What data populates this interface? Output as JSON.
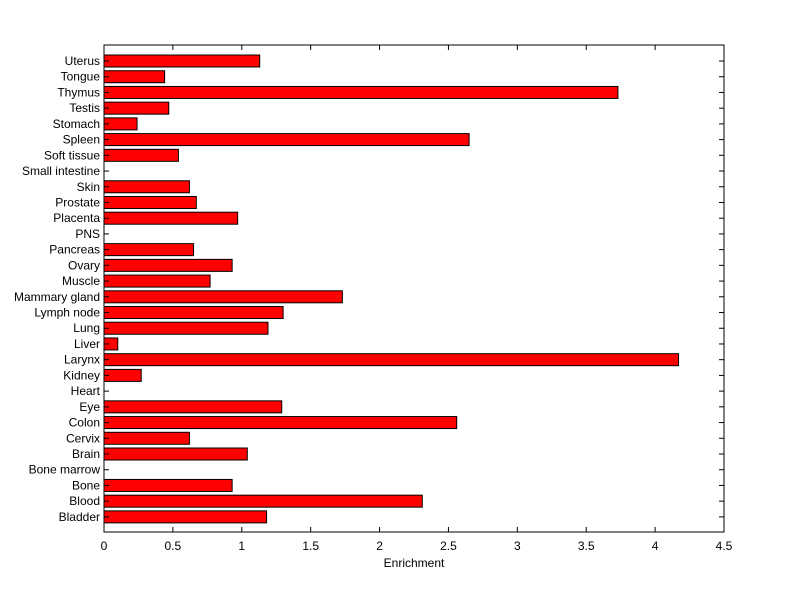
{
  "chart_data": {
    "type": "bar",
    "orientation": "horizontal",
    "title": "",
    "xlabel": "Enrichment",
    "ylabel": "",
    "xlim": [
      0,
      4.5
    ],
    "xticks": [
      0,
      0.5,
      1,
      1.5,
      2,
      2.5,
      3,
      3.5,
      4,
      4.5
    ],
    "xtick_labels": [
      "0",
      "0.5",
      "1",
      "1.5",
      "2",
      "2.5",
      "3",
      "3.5",
      "4",
      "4.5"
    ],
    "grid": false,
    "bar_color": "#ff0000",
    "categories": [
      "Uterus",
      "Tongue",
      "Thymus",
      "Testis",
      "Stomach",
      "Spleen",
      "Soft tissue",
      "Small intestine",
      "Skin",
      "Prostate",
      "Placenta",
      "PNS",
      "Pancreas",
      "Ovary",
      "Muscle",
      "Mammary gland",
      "Lymph node",
      "Lung",
      "Liver",
      "Larynx",
      "Kidney",
      "Heart",
      "Eye",
      "Colon",
      "Cervix",
      "Brain",
      "Bone marrow",
      "Bone",
      "Blood",
      "Bladder"
    ],
    "values": [
      1.13,
      0.44,
      3.73,
      0.47,
      0.24,
      2.65,
      0.54,
      0,
      0.62,
      0.67,
      0.97,
      0,
      0.65,
      0.93,
      0.77,
      1.73,
      1.3,
      1.19,
      0.1,
      4.17,
      0.27,
      0,
      1.29,
      2.56,
      0.62,
      1.04,
      0,
      0.93,
      2.31,
      1.18
    ]
  }
}
